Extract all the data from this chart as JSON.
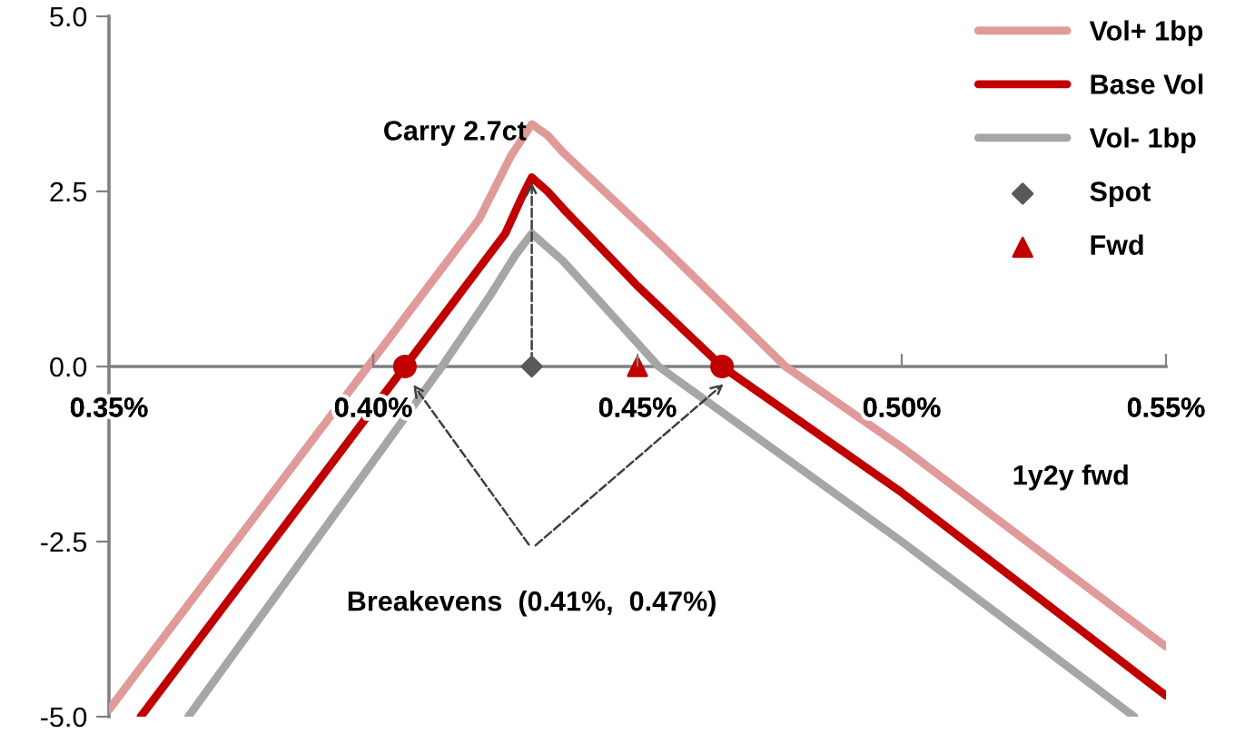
{
  "chart_data": {
    "type": "line",
    "xlabel": "1y2y fwd",
    "xlim": [
      0.35,
      0.55
    ],
    "xticks": [
      {
        "value": 0.35,
        "label": "0.35%"
      },
      {
        "value": 0.4,
        "label": "0.40%"
      },
      {
        "value": 0.45,
        "label": "0.45%"
      },
      {
        "value": 0.5,
        "label": "0.50%"
      },
      {
        "value": 0.55,
        "label": "0.55%"
      }
    ],
    "ylim": [
      -5,
      5
    ],
    "yticks": [
      {
        "value": -5,
        "label": "-5.0"
      },
      {
        "value": -2.5,
        "label": "-2.5"
      },
      {
        "value": 0,
        "label": "0.0"
      },
      {
        "value": 2.5,
        "label": "2.5"
      },
      {
        "value": 5,
        "label": "5.0"
      }
    ],
    "grid": false,
    "legend": "top right",
    "series": [
      {
        "name": "Vol+ 1bp",
        "color": "#e09a9a",
        "x": [
          0.35,
          0.399,
          0.42,
          0.426,
          0.43,
          0.433,
          0.436,
          0.455,
          0.478,
          0.5,
          0.55
        ],
        "values": [
          -4.9,
          0,
          2.1,
          3.0,
          3.46,
          3.3,
          3.05,
          1.7,
          0,
          -1.15,
          -4.0
        ]
      },
      {
        "name": "Base Vol",
        "color": "#c00000",
        "x": [
          0.356,
          0.406,
          0.42,
          0.425,
          0.428,
          0.43,
          0.433,
          0.436,
          0.45,
          0.466,
          0.5,
          0.55
        ],
        "values": [
          -5.0,
          0,
          1.4,
          1.9,
          2.4,
          2.7,
          2.5,
          2.25,
          1.15,
          0,
          -1.8,
          -4.7
        ]
      },
      {
        "name": "Vol- 1bp",
        "color": "#a6a6a6",
        "x": [
          0.365,
          0.413,
          0.422,
          0.427,
          0.43,
          0.433,
          0.436,
          0.454,
          0.5,
          0.544
        ],
        "values": [
          -5.0,
          0,
          1.0,
          1.6,
          1.9,
          1.7,
          1.5,
          0,
          -2.5,
          -5.0
        ]
      },
      {
        "name": "Spot",
        "type": "scatter",
        "marker": "diamond",
        "color": "#595959",
        "x": [
          0.43
        ],
        "values": [
          0
        ]
      },
      {
        "name": "Fwd",
        "type": "scatter",
        "marker": "triangle",
        "color": "#c00000",
        "x": [
          0.45
        ],
        "values": [
          0
        ]
      },
      {
        "type": "scatter",
        "marker": "circle",
        "color": "#c00000",
        "x": [
          0.406,
          0.466
        ],
        "values": [
          0,
          0
        ]
      }
    ],
    "annotations": [
      {
        "text": "Carry 2.7ct",
        "x": 0.43,
        "y": 2.7
      },
      "Breakevens  (0.41%,  0.47%)"
    ]
  }
}
